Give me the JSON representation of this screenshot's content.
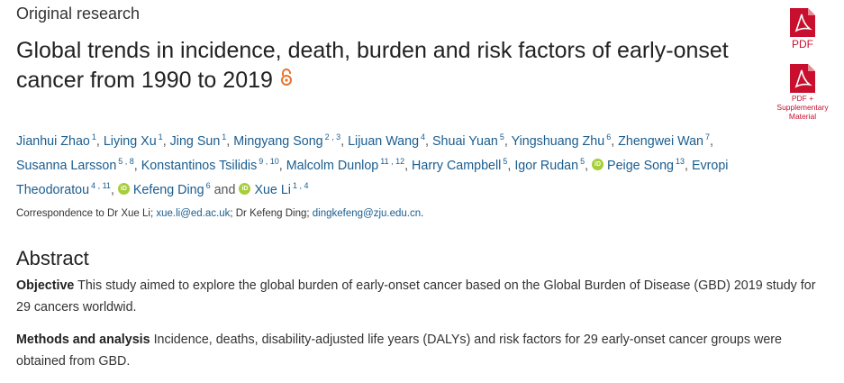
{
  "article": {
    "type_label": "Original research",
    "title": "Global trends in incidence, death, burden and risk factors of early-onset cancer from 1990 to 2019"
  },
  "side_actions": {
    "pdf_label": "PDF",
    "supp_label_line1": "PDF +",
    "supp_label_line2": "Supplementary",
    "supp_label_line3": "Material",
    "icon_color": "#c8102e"
  },
  "authors": [
    {
      "name": "Jianhui Zhao",
      "aff": "1"
    },
    {
      "name": "Liying Xu",
      "aff": "1"
    },
    {
      "name": "Jing Sun",
      "aff": "1"
    },
    {
      "name": "Mingyang Song",
      "aff": "2 , 3"
    },
    {
      "name": "Lijuan Wang",
      "aff": "4"
    },
    {
      "name": "Shuai Yuan",
      "aff": "5"
    },
    {
      "name": "Yingshuang Zhu",
      "aff": "6"
    },
    {
      "name": "Zhengwei Wan",
      "aff": "7"
    },
    {
      "name": "Susanna Larsson",
      "aff": "5 , 8"
    },
    {
      "name": "Konstantinos Tsilidis",
      "aff": "9 , 10"
    },
    {
      "name": "Malcolm Dunlop",
      "aff": "11 , 12"
    },
    {
      "name": "Harry Campbell",
      "aff": "5"
    },
    {
      "name": "Igor Rudan",
      "aff": "5"
    },
    {
      "name": "Peige Song",
      "aff": "13"
    },
    {
      "name": "Evropi Theodoratou",
      "aff": "4 , 11"
    },
    {
      "name": "Kefeng Ding",
      "aff": "6"
    },
    {
      "name": "Xue Li",
      "aff": "1 , 4"
    }
  ],
  "authors_conjunction": "and",
  "orcid_label": "iD",
  "correspondence": {
    "prefix": "Correspondence to Dr Xue Li;",
    "email1": "xue.li@ed.ac.uk",
    "middle": "; Dr Kefeng Ding;",
    "email2": "dingkefeng@zju.edu.cn",
    "suffix": "."
  },
  "abstract": {
    "heading": "Abstract",
    "objective_label": "Objective",
    "objective_text": "This study aimed to explore the global burden of early-onset cancer based on the Global Burden of Disease (GBD) 2019 study for 29 cancers worldwid.",
    "methods_label": "Methods and analysis",
    "methods_text": "Incidence, deaths, disability-adjusted life years (DALYs) and risk factors for 29 early-onset cancer groups were obtained from GBD."
  },
  "colors": {
    "link": "#1a5d8f",
    "open_access": "#e8732a",
    "orcid": "#a6ce39"
  }
}
